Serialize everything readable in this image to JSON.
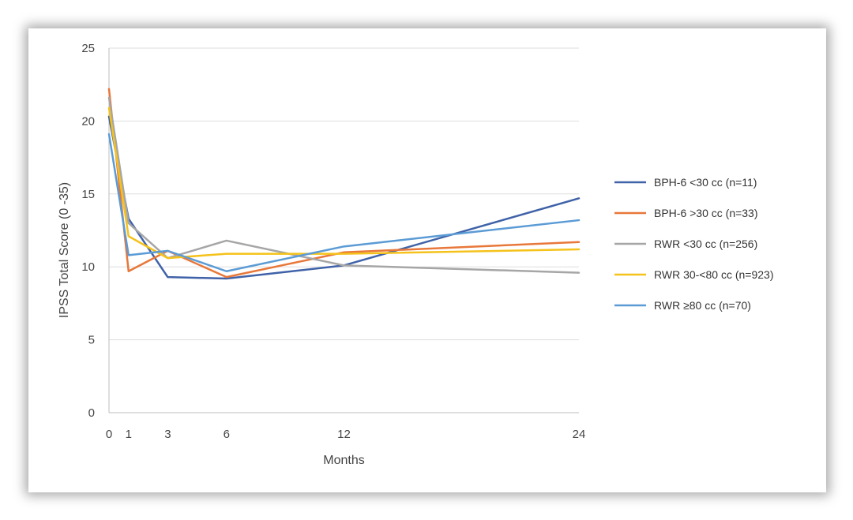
{
  "chart_data": {
    "type": "line",
    "xlabel": "Months",
    "ylabel": "IPSS Total Score (0 -35)",
    "x": [
      0,
      1,
      3,
      6,
      12,
      24
    ],
    "x_ticks": [
      "0",
      "1",
      "3",
      "6",
      "12",
      "24"
    ],
    "ylim": [
      0,
      25
    ],
    "y_ticks": [
      0,
      5,
      10,
      15,
      20,
      25
    ],
    "grid": "horizontal",
    "legend_position": "right",
    "series": [
      {
        "name": "BPH-6 <30 cc (n=11)",
        "color": "#3f62a8",
        "values": [
          20.3,
          13.3,
          9.3,
          9.2,
          10.1,
          14.7
        ]
      },
      {
        "name": "BPH-6 >30 cc (n=33)",
        "color": "#e8773a",
        "values": [
          22.2,
          9.7,
          11.1,
          9.3,
          11.0,
          11.7
        ]
      },
      {
        "name": "RWR <30 cc (n=256)",
        "color": "#a6a6a6",
        "values": [
          21.6,
          13.0,
          10.6,
          11.8,
          10.1,
          9.6
        ]
      },
      {
        "name": "RWR 30-<80 cc (n=923)",
        "color": "#f5c21b",
        "values": [
          20.9,
          12.1,
          10.6,
          10.9,
          10.9,
          11.2
        ]
      },
      {
        "name": "RWR ≥80 cc (n=70)",
        "color": "#5b9bd5",
        "values": [
          19.1,
          10.8,
          11.1,
          9.7,
          11.4,
          13.2
        ]
      }
    ]
  }
}
